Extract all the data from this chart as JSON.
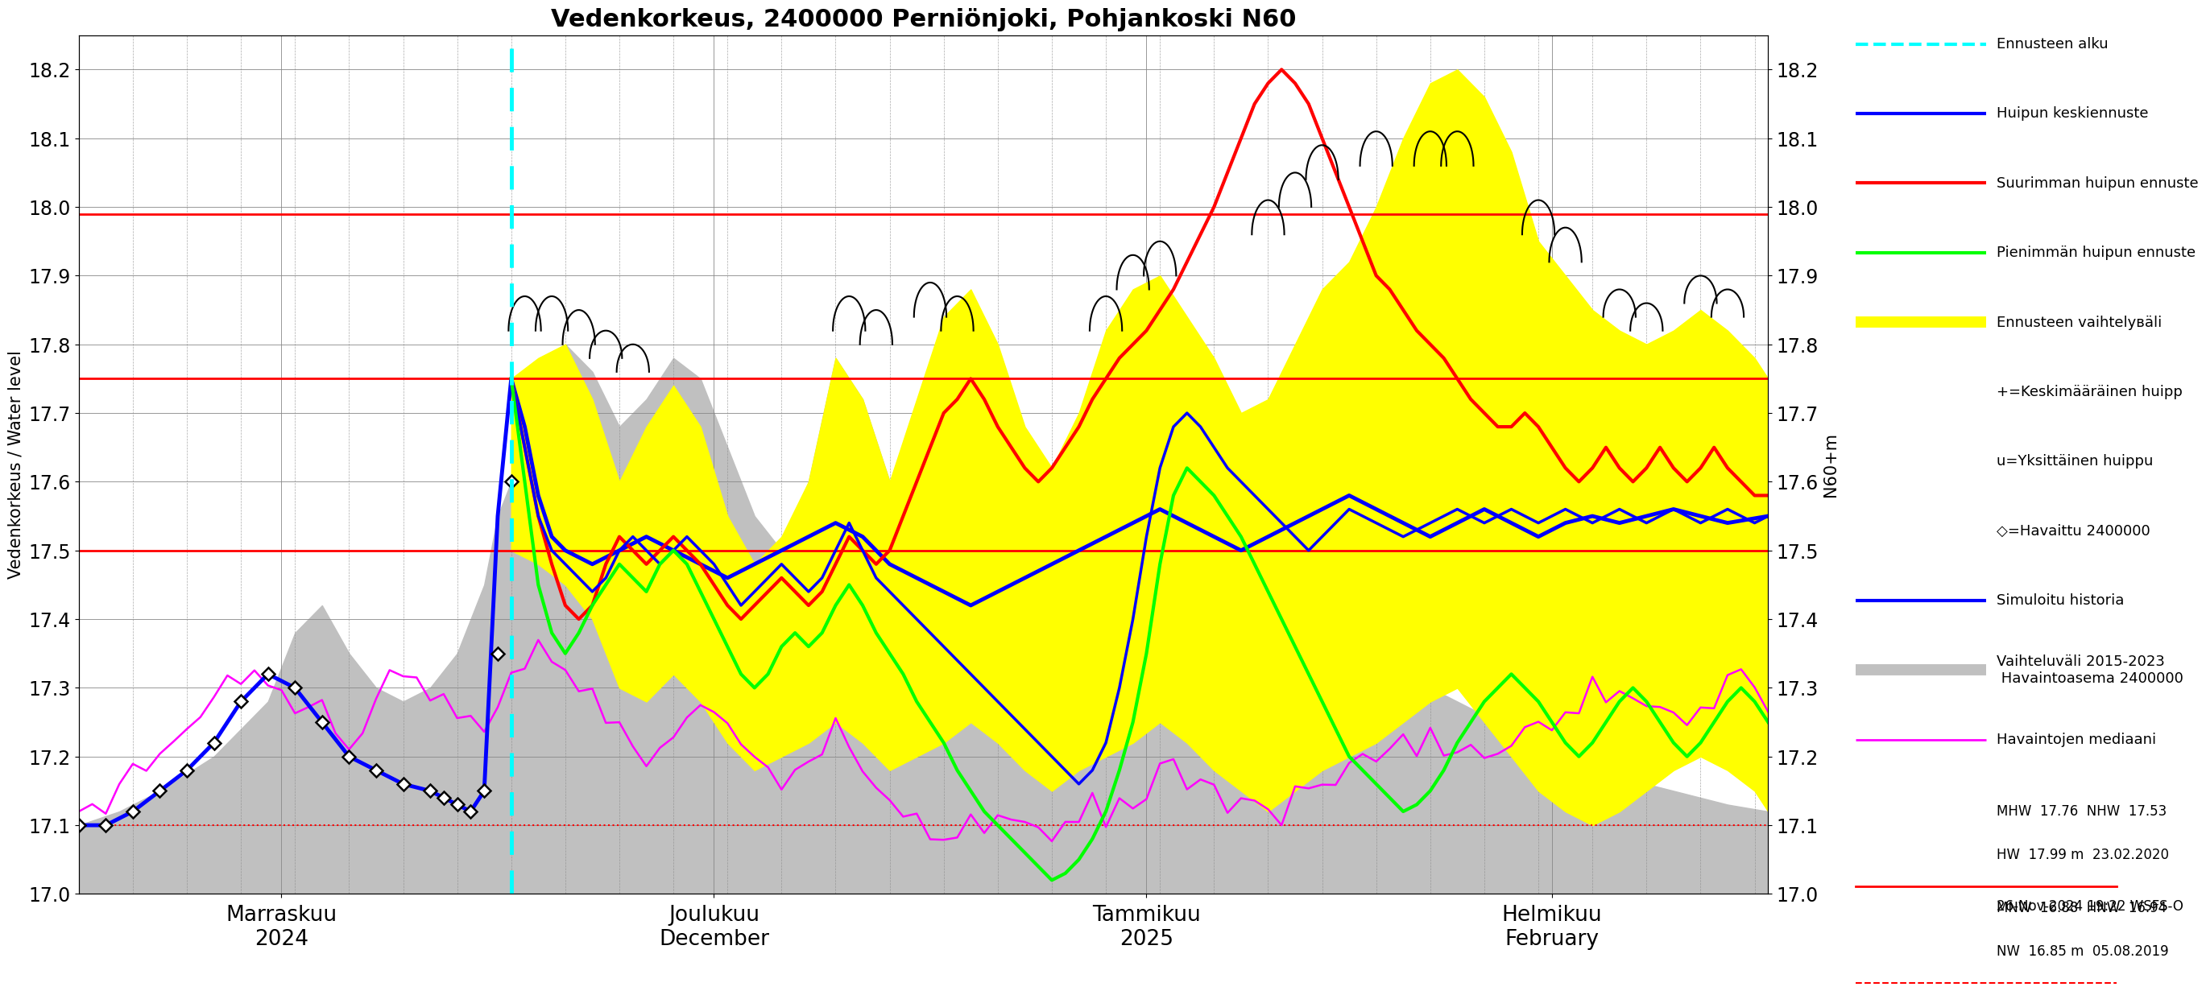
{
  "title": "Vedenkorkeus, 2400000 Perniönjoki, Pohjankoski N60",
  "ylabel_left": "Vedenkorkeus / Water level",
  "ylabel_right": "N60+m",
  "ylim": [
    17.0,
    18.25
  ],
  "yticks": [
    17.0,
    17.1,
    17.2,
    17.3,
    17.4,
    17.5,
    17.6,
    17.7,
    17.8,
    17.9,
    18.0,
    18.1,
    18.2
  ],
  "red_hlines": [
    17.99,
    17.75,
    17.5
  ],
  "red_dashed_hline": 17.1,
  "forecast_start_idx": 32,
  "n_total": 126,
  "colors": {
    "yellow": "#FFFF00",
    "gray": "#C0C0C0",
    "red": "#FF0000",
    "blue": "#0000FF",
    "green": "#00FF00",
    "magenta": "#FF00FF",
    "cyan": "#00FFFF",
    "black": "#000000",
    "white": "#FFFFFF"
  },
  "xtick_positions": [
    15,
    47,
    79,
    109
  ],
  "xtick_labels": [
    "Marraskuu\n2024",
    "Joulukuu\nDecember",
    "Tammikuu\n2025",
    "Helmikuu\nFebruary"
  ],
  "legend_lines": [
    {
      "label": "Ennusteen alku",
      "color": "#00FFFF",
      "ls": "--",
      "lw": 3
    },
    {
      "label": "Huipun keskiennuste",
      "color": "#0000FF",
      "ls": "-",
      "lw": 3
    },
    {
      "label": "Suurimman huipun ennuste",
      "color": "#FF0000",
      "ls": "-",
      "lw": 3
    },
    {
      "label": "Pienimmän huipun ennuste",
      "color": "#00FF00",
      "ls": "-",
      "lw": 3
    },
    {
      "label": "Ennusteen vaihtelувäli",
      "color": "#FFFF00",
      "ls": "-",
      "lw": 10
    },
    {
      "label": "+=Keskimääräinen huipp",
      "color": "#000000",
      "ls": "none",
      "lw": 0
    },
    {
      "label": "u=Yksittäinen huippu",
      "color": "#000000",
      "ls": "none",
      "lw": 0
    },
    {
      "label": "◇=Havaittu 2400000",
      "color": "#000000",
      "ls": "none",
      "lw": 0
    },
    {
      "label": "Simuloitu historia",
      "color": "#0000FF",
      "ls": "-",
      "lw": 3
    },
    {
      "label": "Vaihteluväli 2015-2023\n Havaintoasema 2400000",
      "color": "#C0C0C0",
      "ls": "-",
      "lw": 10
    },
    {
      "label": "Havaintojen mediaani",
      "color": "#FF00FF",
      "ls": "-",
      "lw": 2
    }
  ],
  "ann_line1": "MHW  17.76  NHW  17.53",
  "ann_line2": "HW  17.99 m  23.02.2020",
  "ann_line3": "MNW  16.88  HNW  16.94",
  "ann_line4": "NW  16.85 m  05.08.2019",
  "timestamp": "26-Nov-2024 19:22 WSFS-O"
}
